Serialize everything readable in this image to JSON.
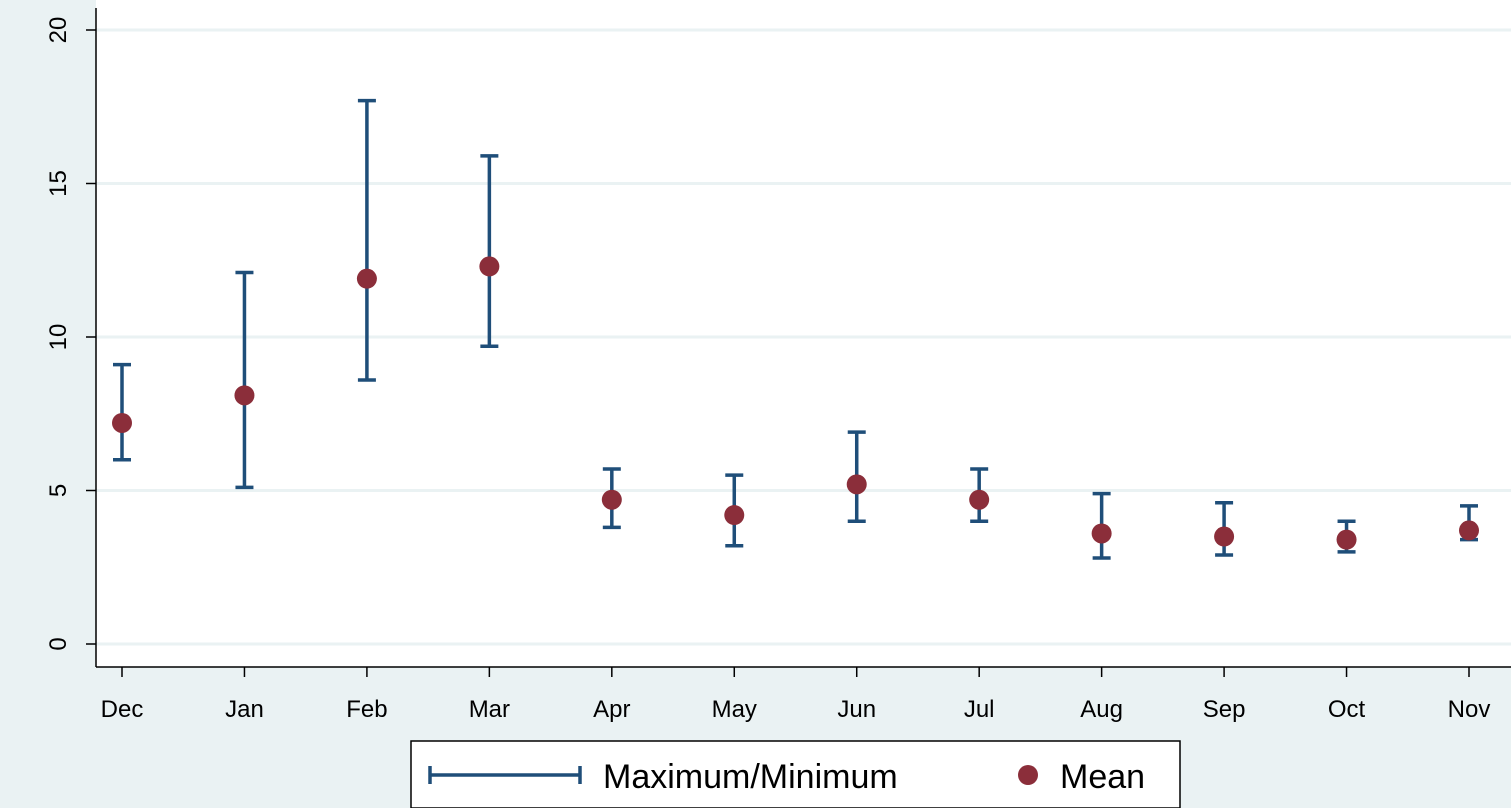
{
  "chart_data": {
    "type": "scatter",
    "categories": [
      "Dec",
      "Jan",
      "Feb",
      "Mar",
      "Apr",
      "May",
      "Jun",
      "Jul",
      "Aug",
      "Sep",
      "Oct",
      "Nov"
    ],
    "series": [
      {
        "name": "Maximum/Minimum",
        "kind": "range",
        "max": [
          9.1,
          12.1,
          17.7,
          15.9,
          5.7,
          5.5,
          6.9,
          5.7,
          4.9,
          4.6,
          4.0,
          4.5
        ],
        "min": [
          6.0,
          5.1,
          8.6,
          9.7,
          3.8,
          3.2,
          4.0,
          4.0,
          2.8,
          2.9,
          3.0,
          3.4
        ]
      },
      {
        "name": "Mean",
        "kind": "point",
        "values": [
          7.2,
          8.1,
          11.9,
          12.3,
          4.7,
          4.2,
          5.2,
          4.7,
          3.6,
          3.5,
          3.4,
          3.7
        ]
      }
    ],
    "yticks": [
      "0",
      "5",
      "10",
      "15",
      "20"
    ],
    "ylim": [
      0,
      20
    ],
    "grid": true,
    "legend_position": "bottom",
    "colors": {
      "range": "#1f4e79",
      "mean": "#8b2e3a",
      "grid": "#eaf2f3",
      "plot_bg": "#ffffff",
      "outer_bg": "#eaf2f3"
    }
  }
}
